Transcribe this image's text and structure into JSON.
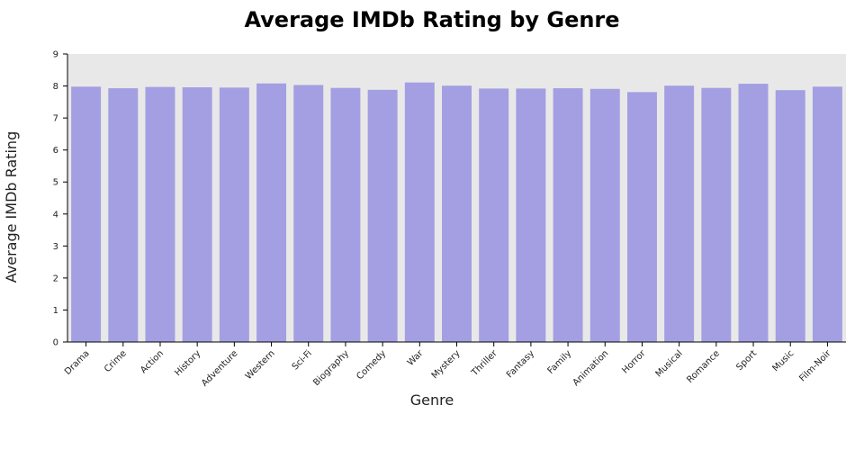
{
  "chart_data": {
    "type": "bar",
    "title": "Average IMDb Rating by Genre",
    "xlabel": "Genre",
    "ylabel": "Average IMDb Rating",
    "ylim": [
      0,
      9
    ],
    "yticks": [
      "0",
      "1",
      "2",
      "3",
      "4",
      "5",
      "6",
      "7",
      "8",
      "9"
    ],
    "grid": false,
    "legend": "none",
    "categories": [
      "Drama",
      "Crime",
      "Action",
      "History",
      "Adventure",
      "Western",
      "Sci-Fi",
      "Biography",
      "Comedy",
      "War",
      "Mystery",
      "Thriller",
      "Fantasy",
      "Family",
      "Animation",
      "Horror",
      "Musical",
      "Romance",
      "Sport",
      "Music",
      "Film-Noir"
    ],
    "values": [
      7.98,
      7.93,
      7.97,
      7.96,
      7.95,
      8.08,
      8.03,
      7.94,
      7.88,
      8.11,
      8.01,
      7.92,
      7.92,
      7.93,
      7.91,
      7.81,
      8.01,
      7.94,
      8.07,
      7.87,
      7.98
    ],
    "colors": {
      "bar": "#a39fe2",
      "plot_background": "#e8e8e8",
      "axis": "#000000",
      "text": "#222222"
    }
  }
}
